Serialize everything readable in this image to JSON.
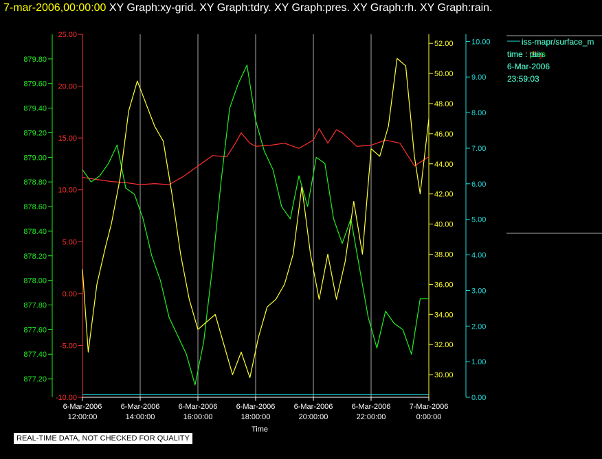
{
  "header": {
    "timestamp": "7-mar-2006,00:00:00",
    "graphs": "XY Graph:xy-grid.  XY Graph:tdry.  XY Graph:pres.  XY Graph:rh.  XY Graph:rain."
  },
  "disclaimer": "REAL-TIME DATA, NOT CHECKED FOR QUALITY",
  "colors": {
    "tdry": "#ff3030",
    "pres": "#22ee22",
    "rh": "#ffff33",
    "rain": "#22dddd",
    "grid": "#aaaaaa"
  },
  "chart_data": {
    "type": "line",
    "xlabel": "Time",
    "x_ticks": [
      {
        "l1": "6-Mar-2006",
        "l2": "12:00:00"
      },
      {
        "l1": "6-Mar-2006",
        "l2": "14:00:00"
      },
      {
        "l1": "6-Mar-2006",
        "l2": "16:00:00"
      },
      {
        "l1": "6-Mar-2006",
        "l2": "18:00:00"
      },
      {
        "l1": "6-Mar-2006",
        "l2": "20:00:00"
      },
      {
        "l1": "6-Mar-2006",
        "l2": "22:00:00"
      },
      {
        "l1": "7-Mar-2006",
        "l2": "0:00:00"
      }
    ],
    "x_range_hours": [
      12,
      24
    ],
    "axes": {
      "tdry": {
        "range": [
          -10,
          25
        ],
        "ticks": [
          "-10.00",
          "-5.00",
          "0.00",
          "5.00",
          "10.00",
          "15.00",
          "20.00",
          "25.00"
        ]
      },
      "pres": {
        "range": [
          877.05,
          880.0
        ],
        "ticks": [
          "877.20",
          "877.40",
          "877.60",
          "877.80",
          "878.00",
          "878.20",
          "878.40",
          "878.60",
          "878.80",
          "879.00",
          "879.20",
          "879.40",
          "879.60",
          "879.80"
        ]
      },
      "rh": {
        "range": [
          28.5,
          52.6
        ],
        "ticks": [
          "30.00",
          "32.00",
          "34.00",
          "36.00",
          "38.00",
          "40.00",
          "42.00",
          "44.00",
          "46.00",
          "48.00",
          "50.00",
          "52.00"
        ]
      },
      "rain": {
        "range": [
          0,
          10.2
        ],
        "ticks": [
          "0.00",
          "1.00",
          "2.00",
          "3.00",
          "4.00",
          "5.00",
          "6.00",
          "7.00",
          "8.00",
          "9.00",
          "10.00"
        ]
      }
    },
    "series": [
      {
        "name": "tdry",
        "x": [
          12,
          12.5,
          13,
          13.5,
          14,
          14.5,
          15,
          15.5,
          16,
          16.5,
          17,
          17.3,
          17.5,
          17.8,
          18,
          18.5,
          19,
          19.5,
          20,
          20.2,
          20.5,
          20.8,
          21,
          21.5,
          22,
          22.5,
          23,
          23.5,
          24
        ],
        "y": [
          11.2,
          11.0,
          10.8,
          10.7,
          10.5,
          10.6,
          10.5,
          11.3,
          12.3,
          13.3,
          13.2,
          14.5,
          15.5,
          14.5,
          14.2,
          14.3,
          14.5,
          14.0,
          14.8,
          15.9,
          14.5,
          15.8,
          15.5,
          14.2,
          14.3,
          14.8,
          14.5,
          12.3,
          13.2
        ]
      },
      {
        "name": "pres",
        "x": [
          12,
          12.3,
          12.6,
          12.9,
          13.2,
          13.5,
          13.8,
          14.1,
          14.4,
          14.7,
          15.0,
          15.3,
          15.6,
          15.9,
          16.2,
          16.5,
          16.8,
          17.1,
          17.4,
          17.7,
          18.0,
          18.3,
          18.6,
          18.9,
          19.2,
          19.5,
          19.8,
          20.1,
          20.4,
          20.7,
          21.0,
          21.3,
          21.6,
          21.9,
          22.2,
          22.5,
          22.8,
          23.1,
          23.4,
          23.7,
          24
        ],
        "y": [
          878.9,
          878.8,
          878.85,
          878.95,
          879.1,
          878.75,
          878.7,
          878.5,
          878.2,
          878.0,
          877.7,
          877.55,
          877.4,
          877.15,
          877.5,
          878.1,
          878.8,
          879.4,
          879.6,
          879.75,
          879.3,
          879.05,
          878.9,
          878.6,
          878.5,
          878.85,
          878.6,
          879.0,
          878.95,
          878.5,
          878.3,
          878.5,
          878.1,
          877.7,
          877.45,
          877.75,
          877.65,
          877.6,
          877.4,
          877.85,
          877.85
        ]
      },
      {
        "name": "rh",
        "x": [
          12,
          12.2,
          12.5,
          12.8,
          13.0,
          13.3,
          13.6,
          13.9,
          14.2,
          14.5,
          14.8,
          15.1,
          15.4,
          15.7,
          16.0,
          16.3,
          16.6,
          16.9,
          17.2,
          17.5,
          17.8,
          18.1,
          18.4,
          18.7,
          19.0,
          19.3,
          19.6,
          19.9,
          20.2,
          20.5,
          20.8,
          21.1,
          21.4,
          21.7,
          22.0,
          22.3,
          22.6,
          22.9,
          23.2,
          23.5,
          23.7,
          24
        ],
        "y": [
          37.0,
          31.5,
          36.0,
          38.5,
          40.0,
          43.0,
          47.5,
          49.5,
          48.0,
          46.5,
          45.5,
          42.0,
          38.0,
          35.0,
          33.0,
          33.5,
          34.0,
          32.0,
          30.0,
          31.5,
          29.8,
          32.5,
          34.5,
          35.0,
          36.0,
          38.0,
          42.5,
          38.0,
          35.0,
          38.0,
          35.0,
          37.5,
          41.5,
          38.0,
          45.0,
          44.5,
          46.5,
          51.0,
          50.5,
          44.5,
          42.0,
          47.0
        ]
      },
      {
        "name": "rain",
        "x": [
          12,
          24
        ],
        "y": [
          0.0,
          0.0
        ]
      }
    ],
    "legend": {
      "placement": "right",
      "entries": [
        {
          "key": "tdry",
          "name": "iss-mapr/surface_m",
          "field": "time : tdry",
          "date": "6-Mar-2006",
          "time": "23:59:03"
        },
        {
          "key": "pres",
          "name": "iss-mapr/surface_m",
          "field": "time : pres",
          "date": "6-Mar-2006",
          "time": "23:59:03"
        },
        {
          "key": "rh",
          "name": "iss-mapr/surface_m",
          "field": "time : rh",
          "date": "6-Mar-2006",
          "time": "23:59:03"
        },
        {
          "key": "rain",
          "name": "iss-mapr/surface_m",
          "field": "time : rain",
          "date": "6-Mar-2006",
          "time": "23:59:03"
        }
      ]
    },
    "grid": true
  }
}
